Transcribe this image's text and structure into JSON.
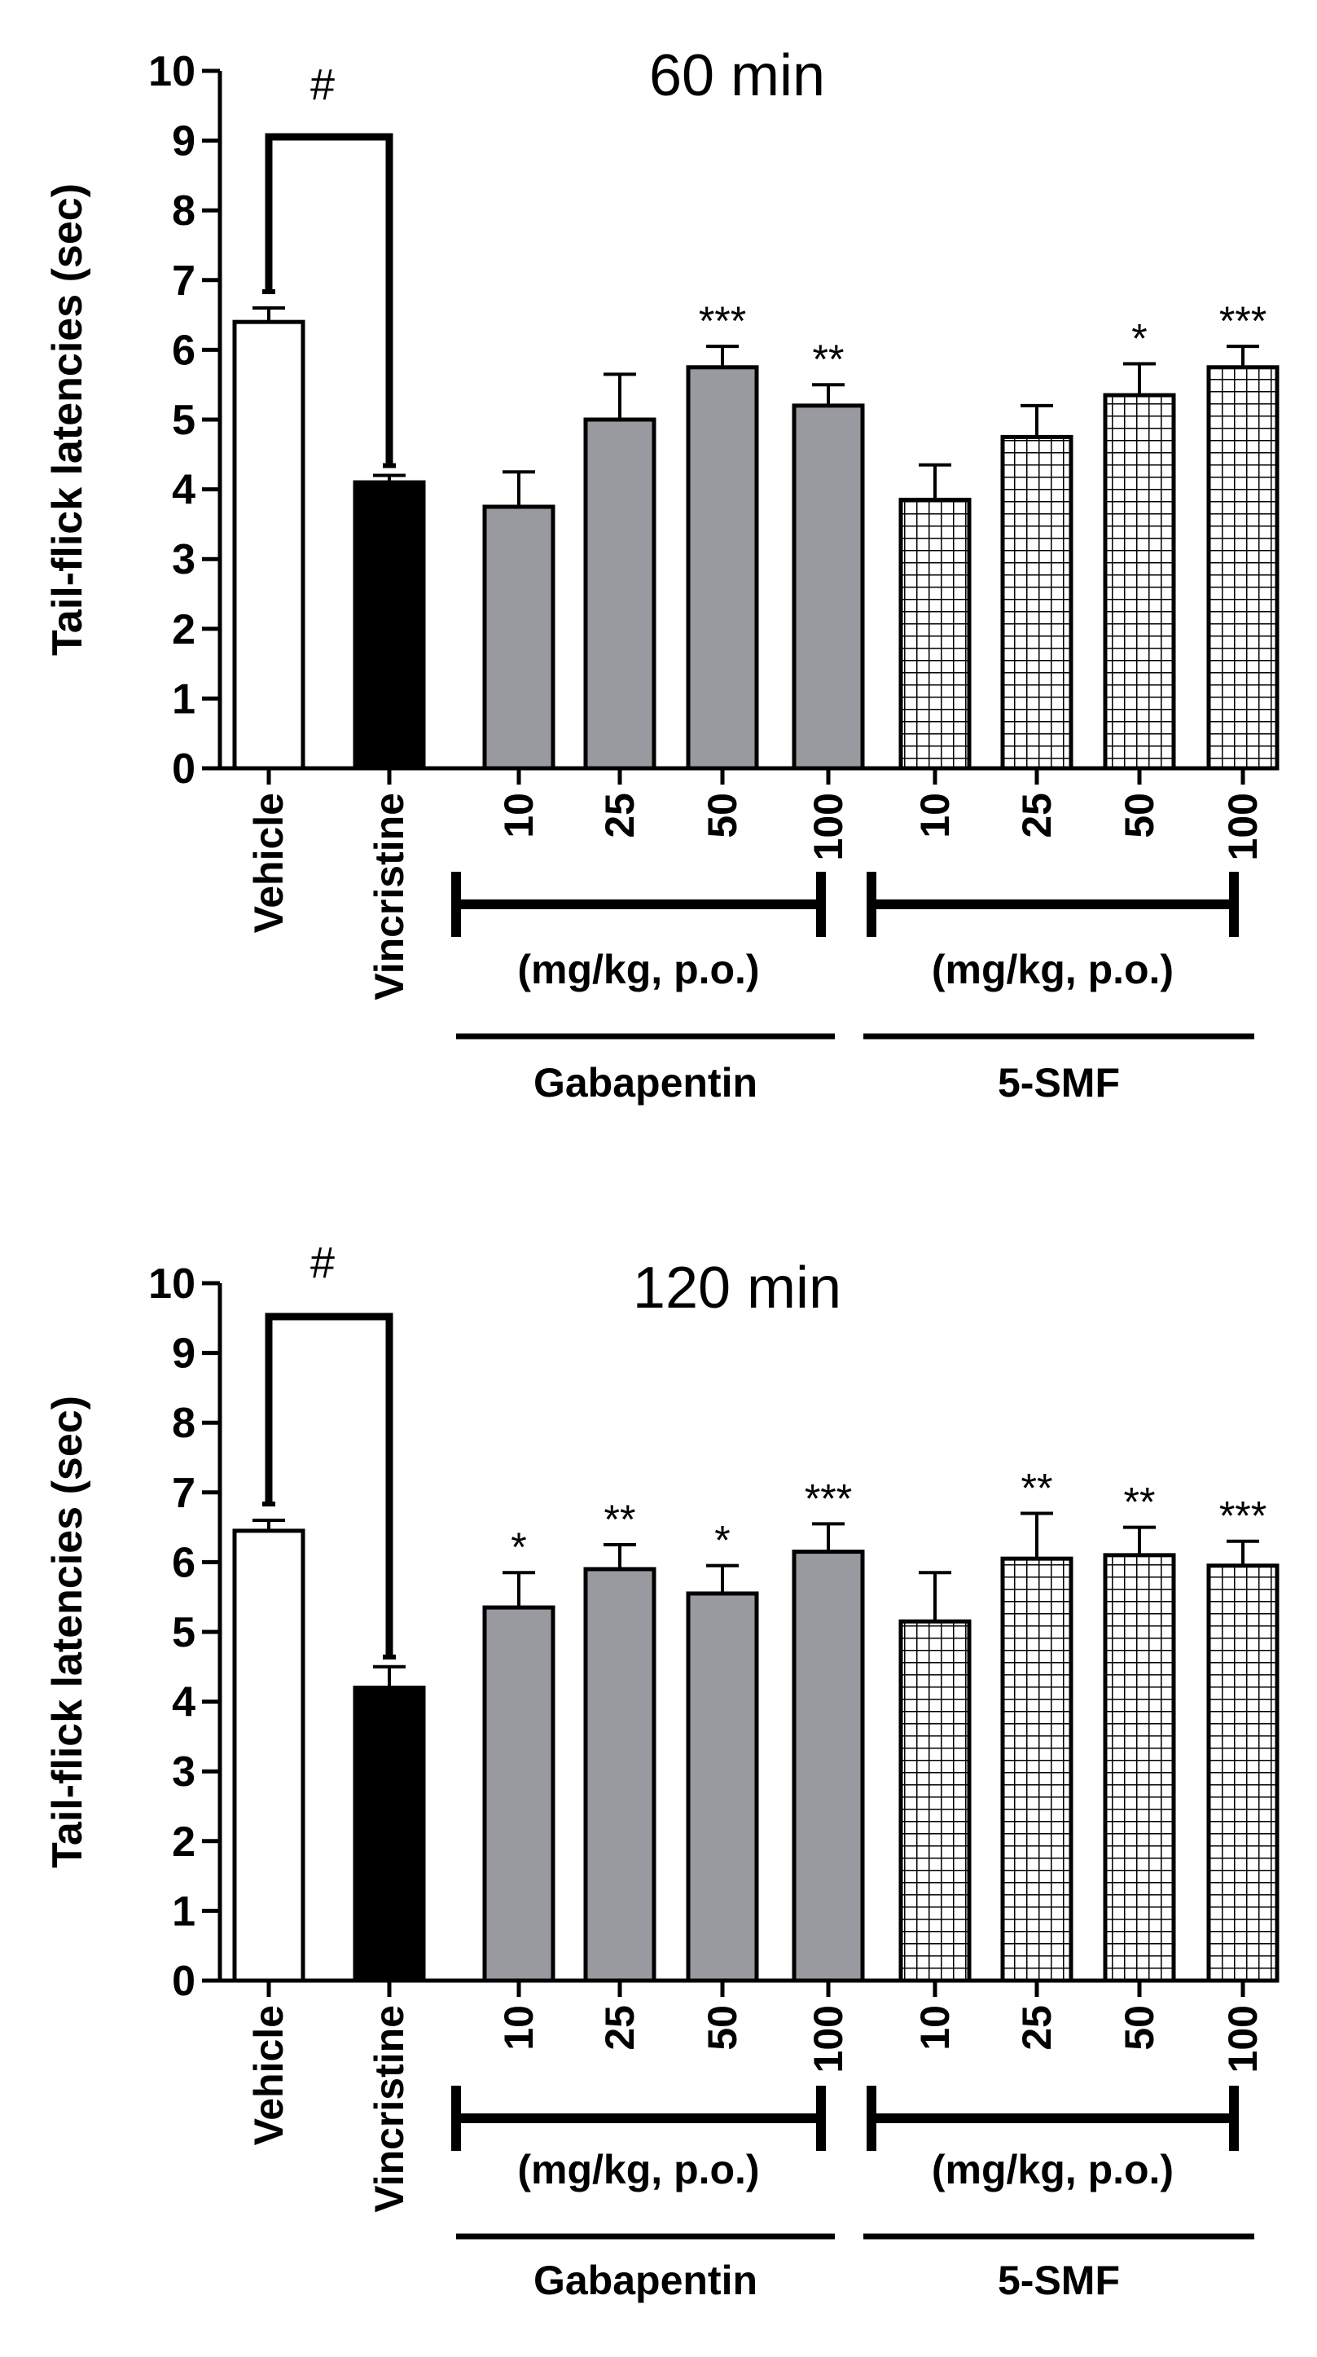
{
  "colors": {
    "vehicle": "#ffffff",
    "vincristine": "#000000",
    "gabapentin": "#999aa0",
    "smf": "crosshatch",
    "axis": "#000000"
  },
  "chart_data": [
    {
      "type": "bar",
      "title": "60 min",
      "ylabel": "Tail-flick latencies (sec)",
      "ylim": [
        0,
        10
      ],
      "yticks": [
        "0",
        "1",
        "2",
        "3",
        "4",
        "5",
        "6",
        "7",
        "8",
        "9",
        "10"
      ],
      "categories": [
        "Vehicle",
        "Vincristine",
        "10",
        "25",
        "50",
        "100",
        "10",
        "25",
        "50",
        "100"
      ],
      "values": [
        6.4,
        4.1,
        3.75,
        5.0,
        5.75,
        5.2,
        3.85,
        4.75,
        5.35,
        5.75
      ],
      "errors": [
        0.2,
        0.1,
        0.5,
        0.65,
        0.3,
        0.3,
        0.5,
        0.45,
        0.45,
        0.3
      ],
      "fills": [
        "vehicle",
        "vincristine",
        "gabapentin",
        "gabapentin",
        "gabapentin",
        "gabapentin",
        "smf",
        "smf",
        "smf",
        "smf"
      ],
      "significance": [
        "",
        "",
        "",
        "",
        "***",
        "**",
        "",
        "",
        "*",
        "***"
      ],
      "comparison_marker": "#",
      "dose_unit": "(mg/kg, p.o.)",
      "groups": [
        "Gabapentin",
        "5-SMF"
      ]
    },
    {
      "type": "bar",
      "title": "120 min",
      "ylabel": "Tail-flick latencies (sec)",
      "ylim": [
        0,
        10
      ],
      "yticks": [
        "0",
        "1",
        "2",
        "3",
        "4",
        "5",
        "6",
        "7",
        "8",
        "9",
        "10"
      ],
      "categories": [
        "Vehicle",
        "Vincristine",
        "10",
        "25",
        "50",
        "100",
        "10",
        "25",
        "50",
        "100"
      ],
      "values": [
        6.45,
        4.2,
        5.35,
        5.9,
        5.55,
        6.15,
        5.15,
        6.05,
        6.1,
        5.95
      ],
      "errors": [
        0.15,
        0.3,
        0.5,
        0.35,
        0.4,
        0.4,
        0.7,
        0.65,
        0.4,
        0.35
      ],
      "fills": [
        "vehicle",
        "vincristine",
        "gabapentin",
        "gabapentin",
        "gabapentin",
        "gabapentin",
        "smf",
        "smf",
        "smf",
        "smf"
      ],
      "significance": [
        "",
        "",
        "*",
        "**",
        "*",
        "***",
        "",
        "**",
        "**",
        "***"
      ],
      "comparison_marker": "#",
      "dose_unit": "(mg/kg, p.o.)",
      "groups": [
        "Gabapentin",
        "5-SMF"
      ]
    }
  ]
}
